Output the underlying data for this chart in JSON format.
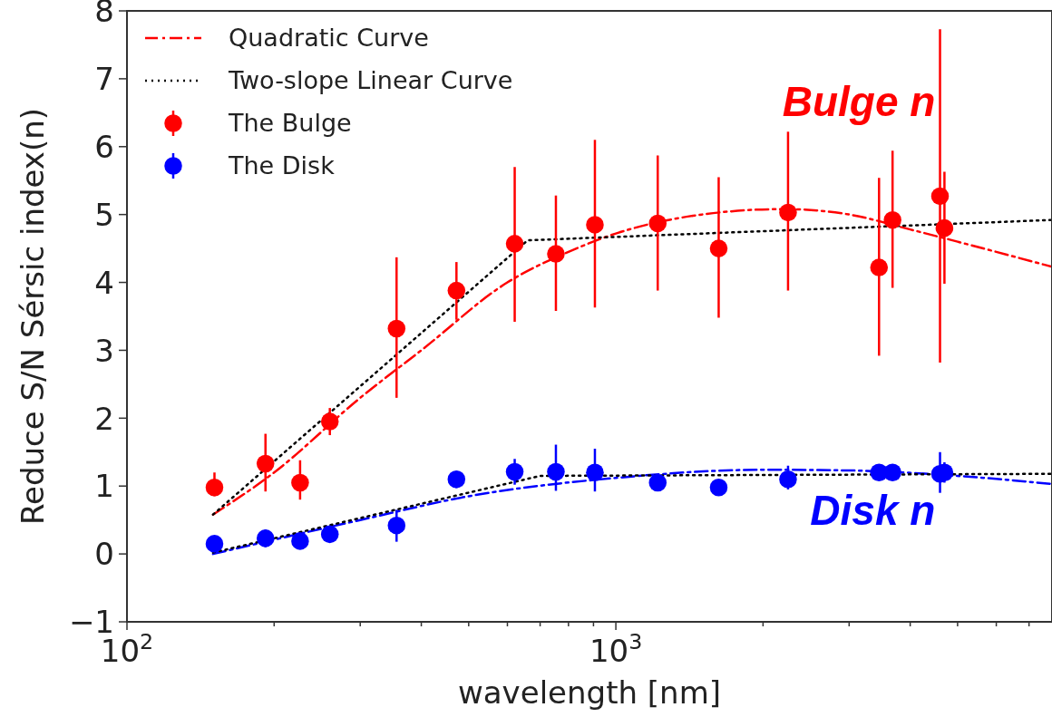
{
  "chart_data": {
    "type": "scatter",
    "xlabel": "wavelength [nm]",
    "ylabel": "Reduce S/N Sérsic index(n)",
    "log": "x",
    "marker": "circle",
    "legend": "top left",
    "grid": false,
    "xlim": [
      100,
      7800
    ],
    "ylim": [
      -1,
      8
    ],
    "xticks": [
      {
        "value": 100,
        "label": "10$^{2}$"
      },
      {
        "value": 200,
        "label": null
      },
      {
        "value": 300,
        "label": null
      },
      {
        "value": 400,
        "label": null
      },
      {
        "value": 500,
        "label": null
      },
      {
        "value": 600,
        "label": null
      },
      {
        "value": 700,
        "label": null
      },
      {
        "value": 800,
        "label": null
      },
      {
        "value": 900,
        "label": null
      },
      {
        "value": 1000,
        "label": "10$^{3}$"
      },
      {
        "value": 2000,
        "label": null
      },
      {
        "value": 3000,
        "label": null
      },
      {
        "value": 4000,
        "label": null
      },
      {
        "value": 5000,
        "label": null
      },
      {
        "value": 6000,
        "label": null
      },
      {
        "value": 7000,
        "label": null
      }
    ],
    "yticks": [
      {
        "value": -1,
        "label": "−1"
      },
      0,
      1,
      2,
      3,
      4,
      5,
      6,
      7,
      8
    ],
    "annotations": [
      "Bulge n",
      "Disk n"
    ],
    "series": [
      {
        "type": "line",
        "marker": "none",
        "name": "Quadratic Curve",
        "color": "#ff0000",
        "line_style": "dashdot",
        "x": [
          150,
          200,
          300,
          400,
          600,
          800,
          1000,
          1500,
          2200,
          3000,
          4000,
          5000,
          7800
        ],
        "values": [
          0.58,
          1.2,
          2.3,
          3.0,
          4.0,
          4.45,
          4.72,
          5.0,
          5.08,
          5.0,
          4.78,
          4.6,
          4.23
        ]
      },
      {
        "type": "line",
        "marker": "none",
        "color": "#0000ff",
        "line_style": "dashdot",
        "x": [
          150,
          300,
          500,
          1000,
          2000,
          3000,
          5000,
          7800
        ],
        "values": [
          0.0,
          0.5,
          0.85,
          1.12,
          1.24,
          1.23,
          1.15,
          1.03
        ]
      },
      {
        "type": "line",
        "marker": "none",
        "name": "Two-slope Linear Curve",
        "color": "#000000",
        "line_style": "dotted",
        "x": [
          150,
          660,
          7800
        ],
        "values": [
          0.58,
          4.62,
          4.92
        ]
      },
      {
        "type": "line",
        "marker": "none",
        "color": "#000000",
        "line_style": "dotted",
        "x": [
          150,
          700,
          7800
        ],
        "values": [
          0.02,
          1.15,
          1.18
        ]
      },
      {
        "name": "The Bulge",
        "color": "#ff0000",
        "x": [
          151,
          192,
          226,
          260,
          356,
          472,
          621,
          754,
          906,
          1218,
          1623,
          2250,
          3454,
          3681,
          4603,
          4700
        ],
        "values": [
          0.98,
          1.33,
          1.05,
          1.95,
          3.32,
          3.88,
          4.57,
          4.42,
          4.85,
          4.87,
          4.5,
          5.03,
          4.22,
          4.92,
          5.27,
          4.8
        ],
        "errors": [
          [
            0.85,
            1.2
          ],
          [
            0.92,
            1.77
          ],
          [
            0.8,
            1.38
          ],
          [
            1.75,
            2.15
          ],
          [
            2.3,
            4.37
          ],
          [
            3.45,
            4.3
          ],
          [
            3.42,
            5.7
          ],
          [
            3.58,
            5.28
          ],
          [
            3.63,
            6.1
          ],
          [
            3.88,
            5.87
          ],
          [
            3.48,
            5.55
          ],
          [
            3.88,
            6.22
          ],
          [
            2.92,
            5.54
          ],
          [
            3.92,
            5.94
          ],
          [
            2.82,
            7.73
          ],
          [
            3.98,
            5.63
          ]
        ]
      },
      {
        "name": "The Disk",
        "color": "#0000ff",
        "x": [
          151,
          192,
          226,
          260,
          356,
          472,
          621,
          754,
          906,
          1218,
          1623,
          2250,
          3454,
          3681,
          4603,
          4700
        ],
        "values": [
          0.15,
          0.23,
          0.19,
          0.29,
          0.42,
          1.1,
          1.21,
          1.21,
          1.2,
          1.05,
          0.98,
          1.1,
          1.2,
          1.2,
          1.18,
          1.2
        ],
        "errors": [
          [
            0.05,
            0.25
          ],
          [
            0.1,
            0.36
          ],
          [
            0.1,
            0.28
          ],
          [
            0.2,
            0.38
          ],
          [
            0.18,
            0.65
          ],
          [
            0.97,
            1.22
          ],
          [
            1.02,
            1.4
          ],
          [
            0.93,
            1.61
          ],
          [
            0.92,
            1.55
          ],
          [
            0.95,
            1.15
          ],
          [
            0.88,
            1.08
          ],
          [
            0.95,
            1.3
          ],
          [
            1.08,
            1.32
          ],
          [
            1.08,
            1.32
          ],
          [
            0.9,
            1.5
          ],
          [
            1.05,
            1.35
          ]
        ]
      }
    ]
  }
}
